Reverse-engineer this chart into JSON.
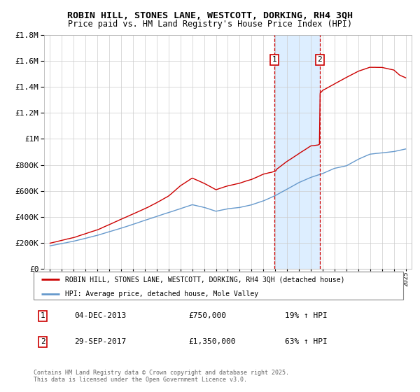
{
  "title_line1": "ROBIN HILL, STONES LANE, WESTCOTT, DORKING, RH4 3QH",
  "title_line2": "Price paid vs. HM Land Registry's House Price Index (HPI)",
  "legend_label1": "ROBIN HILL, STONES LANE, WESTCOTT, DORKING, RH4 3QH (detached house)",
  "legend_label2": "HPI: Average price, detached house, Mole Valley",
  "sale1_date": "04-DEC-2013",
  "sale1_price": "£750,000",
  "sale1_hpi": "19% ↑ HPI",
  "sale2_date": "29-SEP-2017",
  "sale2_price": "£1,350,000",
  "sale2_hpi": "63% ↑ HPI",
  "footnote_line1": "Contains HM Land Registry data © Crown copyright and database right 2025.",
  "footnote_line2": "This data is licensed under the Open Government Licence v3.0.",
  "red_color": "#cc0000",
  "blue_color": "#6699cc",
  "shade_color": "#ddeeff",
  "background_color": "#ffffff",
  "grid_color": "#cccccc",
  "ylim_max": 1800000,
  "sale1_year": 2013.92,
  "sale2_year": 2017.75,
  "hpi_anchors_t": [
    1995,
    1997,
    1999,
    2001,
    2003,
    2005,
    2007,
    2008,
    2009,
    2010,
    2011,
    2012,
    2013,
    2014,
    2015,
    2016,
    2017,
    2018,
    2019,
    2020,
    2021,
    2022,
    2023,
    2024,
    2025
  ],
  "hpi_anchors_v": [
    175000,
    210000,
    255000,
    310000,
    370000,
    430000,
    490000,
    470000,
    440000,
    460000,
    470000,
    490000,
    520000,
    560000,
    610000,
    660000,
    700000,
    730000,
    770000,
    790000,
    840000,
    880000,
    890000,
    900000,
    920000
  ],
  "prop_anchors_t": [
    1995,
    1997,
    1999,
    2001,
    2003,
    2005,
    2006,
    2007,
    2008,
    2009,
    2010,
    2011,
    2012,
    2013,
    2013.91,
    2014,
    2015,
    2016,
    2017,
    2017.74,
    2017.76,
    2018,
    2019,
    2020,
    2021,
    2022,
    2023,
    2024,
    2024.5,
    2025
  ],
  "prop_anchors_v": [
    195000,
    240000,
    300000,
    380000,
    460000,
    560000,
    640000,
    700000,
    660000,
    610000,
    640000,
    660000,
    690000,
    730000,
    750000,
    760000,
    830000,
    890000,
    950000,
    960000,
    1350000,
    1380000,
    1430000,
    1480000,
    1530000,
    1560000,
    1560000,
    1540000,
    1500000,
    1480000
  ]
}
